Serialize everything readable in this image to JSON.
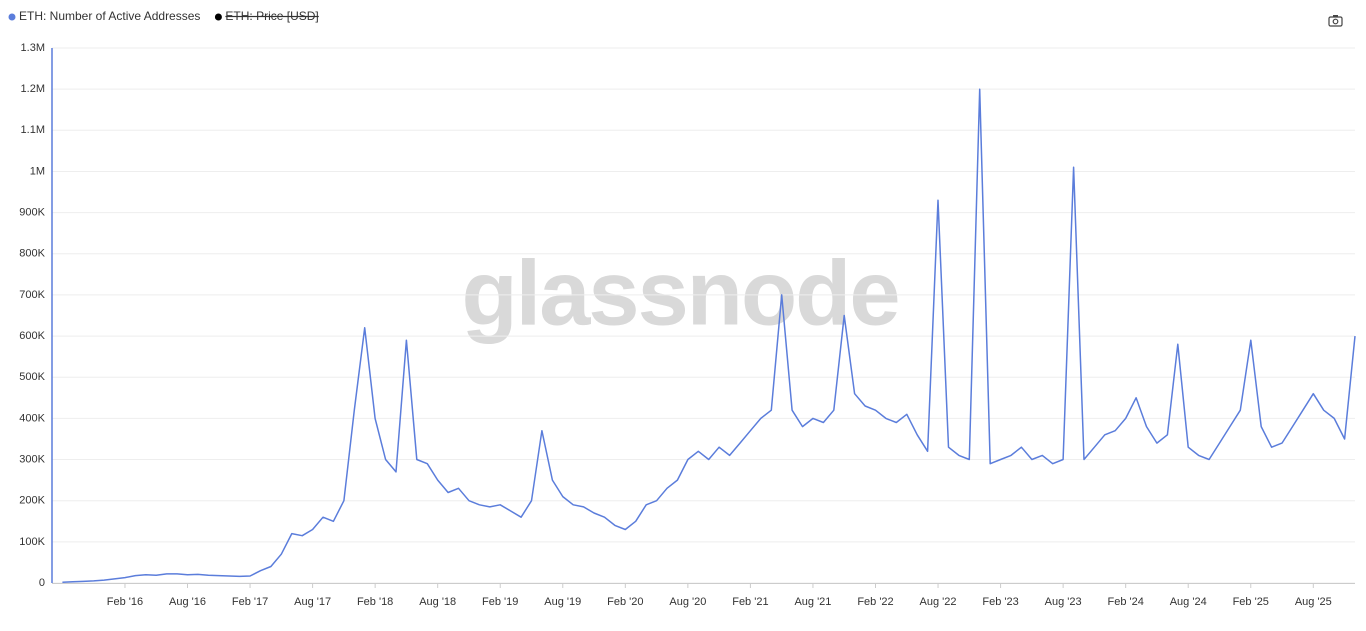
{
  "chart_data": {
    "type": "line",
    "watermark": "glassnode",
    "legend_items": [
      {
        "name": "ETH: Number of Active Addresses",
        "color": "#5b7ddb",
        "hidden": false
      },
      {
        "name": "ETH: Price [USD]",
        "color": "#000000",
        "hidden": true
      }
    ],
    "x": [
      "2015-08",
      "2015-09",
      "2015-10",
      "2015-11",
      "2015-12",
      "2016-01",
      "2016-02",
      "2016-03",
      "2016-04",
      "2016-05",
      "2016-06",
      "2016-07",
      "2016-08",
      "2016-09",
      "2016-10",
      "2016-11",
      "2016-12",
      "2017-01",
      "2017-02",
      "2017-03",
      "2017-04",
      "2017-05",
      "2017-06",
      "2017-07",
      "2017-08",
      "2017-09",
      "2017-10",
      "2017-11",
      "2017-12",
      "2018-01",
      "2018-02",
      "2018-03",
      "2018-04",
      "2018-05",
      "2018-06",
      "2018-07",
      "2018-08",
      "2018-09",
      "2018-10",
      "2018-11",
      "2018-12",
      "2019-01",
      "2019-02",
      "2019-03",
      "2019-04",
      "2019-05",
      "2019-06",
      "2019-07",
      "2019-08",
      "2019-09",
      "2019-10",
      "2019-11",
      "2019-12",
      "2020-01",
      "2020-02",
      "2020-03",
      "2020-04",
      "2020-05",
      "2020-06",
      "2020-07",
      "2020-08",
      "2020-09",
      "2020-10",
      "2020-11",
      "2020-12",
      "2021-01",
      "2021-02",
      "2021-03",
      "2021-04",
      "2021-05",
      "2021-06",
      "2021-07",
      "2021-08",
      "2021-09",
      "2021-10",
      "2021-11",
      "2021-12",
      "2022-01",
      "2022-02",
      "2022-03",
      "2022-04",
      "2022-05",
      "2022-06",
      "2022-07",
      "2022-08",
      "2022-09",
      "2022-10",
      "2022-11",
      "2022-12",
      "2023-01",
      "2023-02",
      "2023-03",
      "2023-04",
      "2023-05",
      "2023-06",
      "2023-07",
      "2023-08",
      "2023-09",
      "2023-10",
      "2023-11",
      "2023-12",
      "2024-01",
      "2024-02",
      "2024-03",
      "2024-04",
      "2024-05",
      "2024-06",
      "2024-07",
      "2024-08",
      "2024-09",
      "2024-10",
      "2024-11",
      "2024-12",
      "2025-01",
      "2025-02",
      "2025-03",
      "2025-04",
      "2025-05",
      "2025-06",
      "2025-07",
      "2025-08",
      "2025-09",
      "2025-10",
      "2025-11",
      "2025-12"
    ],
    "series": [
      {
        "name": "ETH: Number of Active Addresses",
        "color": "#5b7ddb",
        "values": [
          2000,
          3000,
          4000,
          5000,
          7000,
          10000,
          13000,
          18000,
          20000,
          19000,
          22000,
          22000,
          20000,
          21000,
          19000,
          18000,
          17000,
          16000,
          17000,
          30000,
          40000,
          70000,
          120000,
          115000,
          130000,
          160000,
          150000,
          200000,
          420000,
          620000,
          400000,
          300000,
          270000,
          590000,
          300000,
          290000,
          250000,
          220000,
          230000,
          200000,
          190000,
          185000,
          190000,
          175000,
          160000,
          200000,
          370000,
          250000,
          210000,
          190000,
          185000,
          170000,
          160000,
          140000,
          130000,
          150000,
          190000,
          200000,
          230000,
          250000,
          300000,
          320000,
          300000,
          330000,
          310000,
          340000,
          370000,
          400000,
          420000,
          700000,
          420000,
          380000,
          400000,
          390000,
          420000,
          650000,
          460000,
          430000,
          420000,
          400000,
          390000,
          410000,
          360000,
          320000,
          930000,
          330000,
          310000,
          300000,
          1200000,
          290000,
          300000,
          310000,
          330000,
          300000,
          310000,
          290000,
          300000,
          1010000,
          300000,
          330000,
          360000,
          370000,
          400000,
          450000,
          380000,
          340000,
          360000,
          580000,
          330000,
          310000,
          300000,
          340000,
          380000,
          420000,
          590000,
          380000,
          330000,
          340000,
          380000,
          420000,
          460000,
          420000,
          400000,
          350000,
          600000
        ]
      }
    ],
    "xlim": [
      "2015-07",
      "2025-12"
    ],
    "xticks": [
      {
        "value": "2016-02",
        "label": "Feb '16"
      },
      {
        "value": "2016-08",
        "label": "Aug '16"
      },
      {
        "value": "2017-02",
        "label": "Feb '17"
      },
      {
        "value": "2017-08",
        "label": "Aug '17"
      },
      {
        "value": "2018-02",
        "label": "Feb '18"
      },
      {
        "value": "2018-08",
        "label": "Aug '18"
      },
      {
        "value": "2019-02",
        "label": "Feb '19"
      },
      {
        "value": "2019-08",
        "label": "Aug '19"
      },
      {
        "value": "2020-02",
        "label": "Feb '20"
      },
      {
        "value": "2020-08",
        "label": "Aug '20"
      },
      {
        "value": "2021-02",
        "label": "Feb '21"
      },
      {
        "value": "2021-08",
        "label": "Aug '21"
      },
      {
        "value": "2022-02",
        "label": "Feb '22"
      },
      {
        "value": "2022-08",
        "label": "Aug '22"
      },
      {
        "value": "2023-02",
        "label": "Feb '23"
      },
      {
        "value": "2023-08",
        "label": "Aug '23"
      },
      {
        "value": "2024-02",
        "label": "Feb '24"
      },
      {
        "value": "2024-08",
        "label": "Aug '24"
      },
      {
        "value": "2025-02",
        "label": "Feb '25"
      },
      {
        "value": "2025-08",
        "label": "Aug '25"
      }
    ],
    "ylim": [
      0,
      1300000
    ],
    "yticks": [
      0,
      {
        "value": 100000,
        "label": "100K"
      },
      {
        "value": 200000,
        "label": "200K"
      },
      {
        "value": 300000,
        "label": "300K"
      },
      {
        "value": 400000,
        "label": "400K"
      },
      {
        "value": 500000,
        "label": "500K"
      },
      {
        "value": 600000,
        "label": "600K"
      },
      {
        "value": 700000,
        "label": "700K"
      },
      {
        "value": 800000,
        "label": "800K"
      },
      {
        "value": 900000,
        "label": "900K"
      },
      {
        "value": 1000000,
        "label": "1M"
      },
      {
        "value": 1100000,
        "label": "1.1M"
      },
      {
        "value": 1200000,
        "label": "1.2M"
      },
      {
        "value": 1300000,
        "label": "1.3M"
      }
    ],
    "grid": true
  }
}
